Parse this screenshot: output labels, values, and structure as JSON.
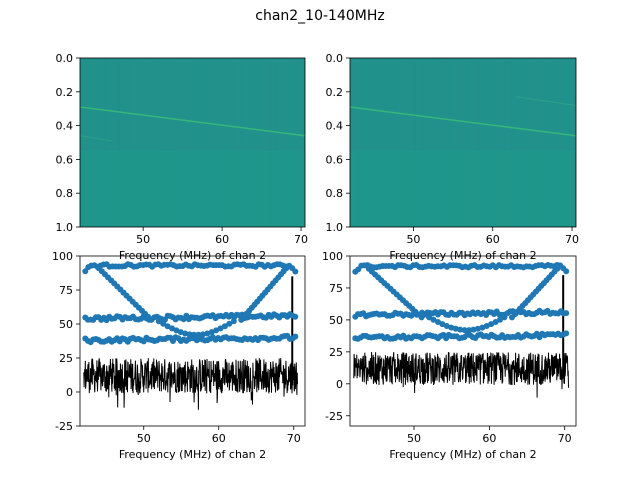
{
  "figure": {
    "suptitle": "chan2_10-140MHz"
  },
  "colors": {
    "heatmap_bg": "#21918c",
    "heatmap_band": "#1f9a8a",
    "heatmap_line": "#35b779",
    "scatter_blue": "#1f77b4",
    "signal_black": "#000000"
  },
  "chart_data": [
    {
      "type": "heatmap",
      "panel": "top-left",
      "title": "",
      "xlabel": "Frequency (MHz) of chan 2",
      "ylabel": "",
      "xlim": [
        42,
        70.5
      ],
      "ylim": [
        1.0,
        0.0
      ],
      "xticks": [
        50,
        60,
        70
      ],
      "yticks": [
        0.0,
        0.2,
        0.4,
        0.6,
        0.8,
        1.0
      ],
      "colormap": "viridis",
      "features": [
        {
          "kind": "line",
          "x": [
            42,
            70.5
          ],
          "y": [
            0.29,
            0.46
          ]
        },
        {
          "kind": "faint-line",
          "x": [
            42,
            46
          ],
          "y": [
            0.46,
            0.49
          ]
        },
        {
          "kind": "band",
          "y": [
            0.55,
            1.0
          ]
        }
      ]
    },
    {
      "type": "heatmap",
      "panel": "top-right",
      "title": "",
      "xlabel": "Frequency (MHz) of chan 2",
      "ylabel": "",
      "xlim": [
        42,
        70.5
      ],
      "ylim": [
        1.0,
        0.0
      ],
      "xticks": [
        50,
        60,
        70
      ],
      "yticks": [
        0.0,
        0.2,
        0.4,
        0.6,
        0.8,
        1.0
      ],
      "colormap": "viridis",
      "features": [
        {
          "kind": "line",
          "x": [
            42,
            70.5
          ],
          "y": [
            0.29,
            0.46
          ]
        },
        {
          "kind": "faint-line",
          "x": [
            63,
            70.5
          ],
          "y": [
            0.23,
            0.28
          ]
        },
        {
          "kind": "band",
          "y": [
            0.55,
            1.0
          ]
        }
      ]
    },
    {
      "type": "scatter",
      "panel": "bottom-left",
      "title": "",
      "xlabel": "Frequency (MHz) of chan 2",
      "ylabel": "",
      "xlim": [
        41.5,
        71.5
      ],
      "ylim": [
        -25,
        100
      ],
      "xticks": [
        50,
        60,
        70
      ],
      "yticks": [
        -25,
        0,
        25,
        50,
        75,
        100
      ],
      "series": [
        {
          "kind": "points",
          "x": [
            42,
            70.5
          ],
          "y": [
            93,
            93
          ],
          "note": "top arc"
        },
        {
          "kind": "points",
          "x": [
            42,
            70.5
          ],
          "y": [
            54,
            56
          ]
        },
        {
          "kind": "points",
          "x": [
            42,
            70.5
          ],
          "y": [
            38,
            40
          ]
        },
        {
          "kind": "noise",
          "x": [
            42,
            70.5
          ],
          "y": [
            -15,
            28
          ]
        }
      ]
    },
    {
      "type": "scatter",
      "panel": "bottom-right",
      "title": "",
      "xlabel": "Frequency (MHz) of chan 2",
      "ylabel": "",
      "xlim": [
        41.5,
        71.5
      ],
      "ylim": [
        -33,
        100
      ],
      "xticks": [
        50,
        60,
        70
      ],
      "yticks": [
        -25,
        0,
        25,
        50,
        75,
        100
      ],
      "series": [
        {
          "kind": "points",
          "x": [
            42,
            70.5
          ],
          "y": [
            92,
            92
          ],
          "note": "top arc"
        },
        {
          "kind": "points",
          "x": [
            42,
            70.5
          ],
          "y": [
            54,
            56
          ]
        },
        {
          "kind": "points",
          "x": [
            42,
            70.5
          ],
          "y": [
            36,
            38
          ]
        },
        {
          "kind": "noise",
          "x": [
            42,
            70.5
          ],
          "y": [
            -22,
            28
          ]
        }
      ]
    }
  ]
}
